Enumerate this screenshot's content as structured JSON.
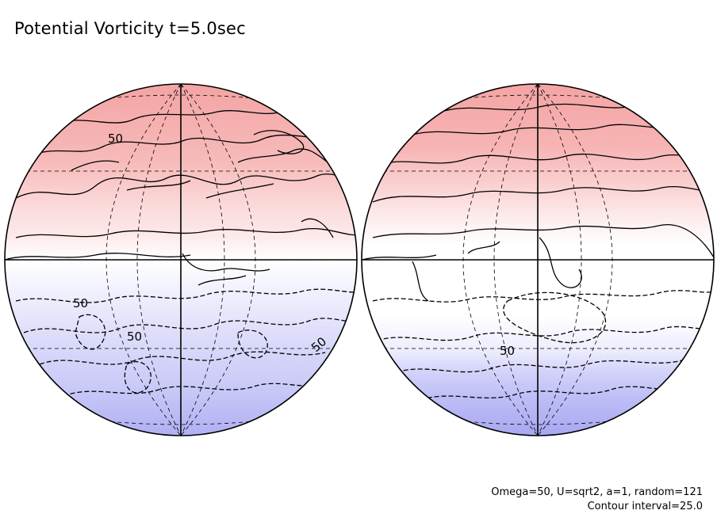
{
  "title": "Potential Vorticity t=5.0sec",
  "footer": {
    "params": "Omega=50, U=sqrt2, a=1, random=121",
    "contour": "Contour interval=25.0"
  },
  "contour_labels": {
    "left": [
      "50",
      "50",
      "50",
      "50"
    ],
    "right": [
      "50"
    ]
  },
  "colors": {
    "north_strong": "#f4a8a8",
    "north_mid": "#f9c8c8",
    "north_light": "#fde6e6",
    "south_light": "#ececfd",
    "south_mid": "#d6d6fb",
    "south_strong": "#b4b4f5",
    "contour": "#000000"
  }
}
